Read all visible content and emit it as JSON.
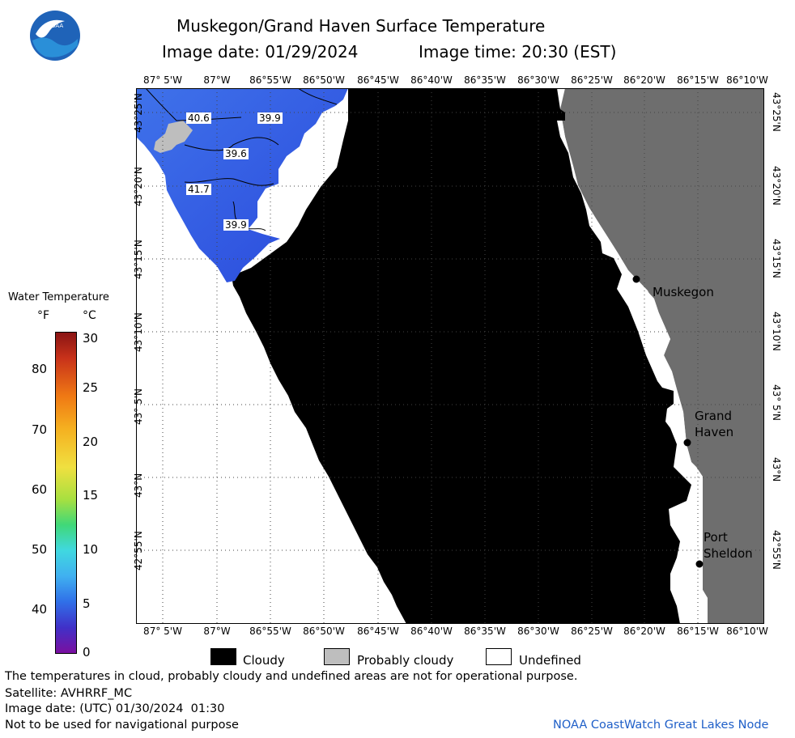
{
  "header": {
    "title": "Muskegon/Grand Haven Surface Temperature",
    "image_date": "Image date: 01/29/2024",
    "image_time": "Image time: 20:30 (EST)",
    "logo_text": "NOAA"
  },
  "map": {
    "lon_labels": [
      "87° 5'W",
      "87°W",
      "86°55'W",
      "86°50'W",
      "86°45'W",
      "86°40'W",
      "86°35'W",
      "86°30'W",
      "86°25'W",
      "86°20'W",
      "86°15'W",
      "86°10'W"
    ],
    "lat_labels": [
      "43°25'N",
      "43°20'N",
      "43°15'N",
      "43°10'N",
      "43° 5'N",
      "43°N",
      "42°55'N"
    ],
    "contour_labels": [
      "40.6",
      "39.9",
      "39.6",
      "41.7",
      "39.9"
    ],
    "cities": [
      {
        "name": "Muskegon"
      },
      {
        "name": "Grand\nHaven"
      },
      {
        "name": "Port\nSheldon"
      }
    ]
  },
  "colorbar": {
    "title": "Water Temperature",
    "unit_f": "°F",
    "unit_c": "°C",
    "f_ticks": [
      "80",
      "70",
      "60",
      "50",
      "40"
    ],
    "c_ticks": [
      "30",
      "25",
      "20",
      "15",
      "10",
      "5",
      "0"
    ]
  },
  "legend": {
    "items": [
      {
        "label": "Cloudy",
        "color": "#000000"
      },
      {
        "label": "Probably cloudy",
        "color": "#bebebe"
      },
      {
        "label": "Undefined",
        "color": "#ffffff"
      }
    ]
  },
  "footer": {
    "note": "The temperatures in cloud, probably cloudy and undefined areas are not for operational purpose.",
    "satellite": "Satellite: AVHRRF_MC",
    "utc_date": "Image date: (UTC) 01/30/2024  01:30",
    "nav": "Not to be used for navigational purpose",
    "credit": "NOAA CoastWatch Great Lakes Node"
  },
  "colors": {
    "land": "#6e6e6e",
    "cloud": "#000000",
    "probably_cloudy": "#bebebe",
    "water_warm": "#3a6ae6",
    "water_cool": "#2e4fe0"
  }
}
